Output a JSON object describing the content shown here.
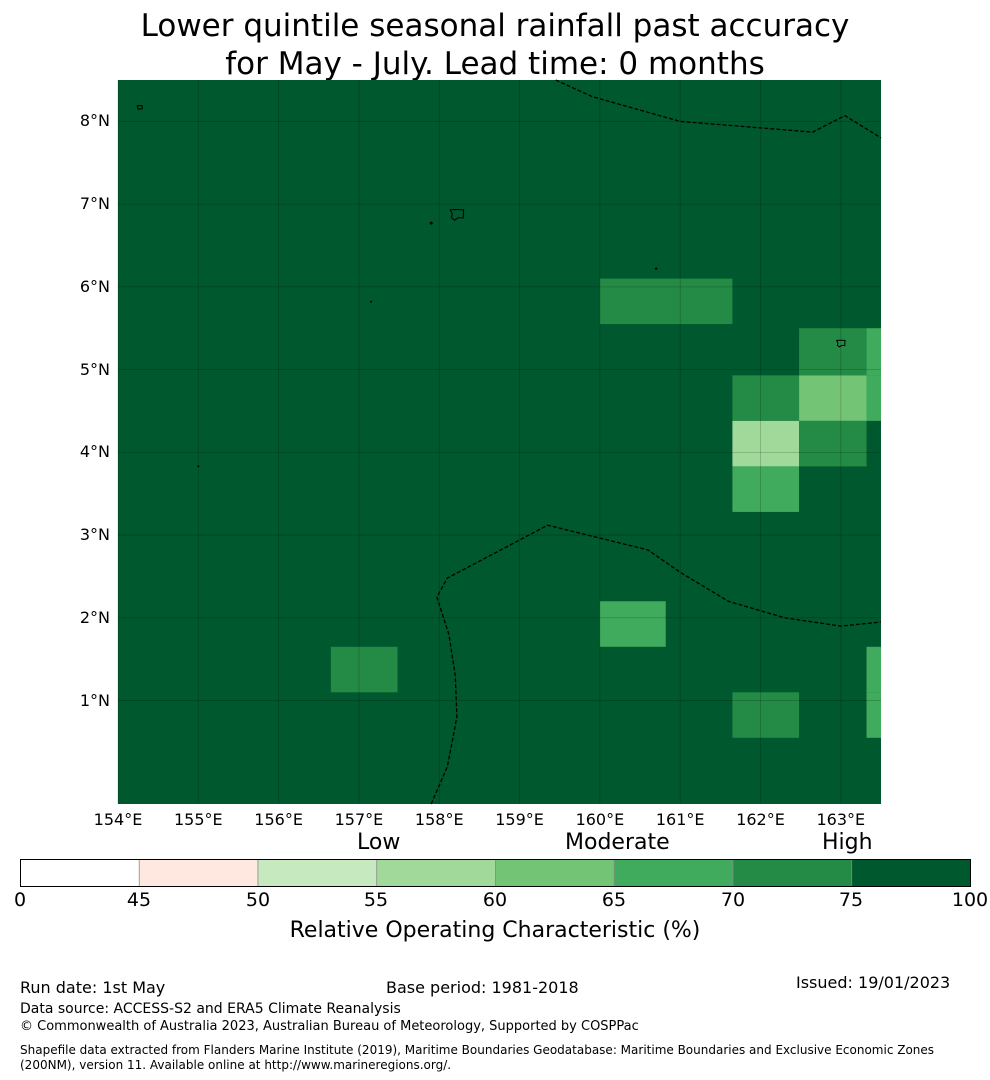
{
  "title": {
    "line1": "Lower quintile seasonal rainfall past accuracy",
    "line2": "for May - July. Lead time: 0 months"
  },
  "map": {
    "lon_range": [
      154,
      163.5
    ],
    "lat_range": [
      -0.25,
      8.5
    ],
    "background_color": "#00582e",
    "lat_labels": [
      "8°N",
      "7°N",
      "6°N",
      "5°N",
      "4°N",
      "3°N",
      "2°N",
      "1°N"
    ],
    "lat_values": [
      8,
      7,
      6,
      5,
      4,
      3,
      2,
      1
    ],
    "lon_labels": [
      "154°E",
      "155°E",
      "156°E",
      "157°E",
      "158°E",
      "159°E",
      "160°E",
      "161°E",
      "162°E",
      "163°E"
    ],
    "lon_values": [
      154,
      155,
      156,
      157,
      158,
      159,
      160,
      161,
      162,
      163
    ],
    "cells": [
      {
        "lon": [
          160.0,
          161.65
        ],
        "lat": [
          5.55,
          6.1
        ],
        "color": "#238b45"
      },
      {
        "lon": [
          162.48,
          163.32
        ],
        "lat": [
          4.93,
          5.5
        ],
        "color": "#238b45"
      },
      {
        "lon": [
          163.32,
          163.5
        ],
        "lat": [
          4.93,
          5.5
        ],
        "color": "#41ab5d"
      },
      {
        "lon": [
          161.65,
          162.48
        ],
        "lat": [
          4.38,
          4.93
        ],
        "color": "#238b45"
      },
      {
        "lon": [
          162.48,
          163.32
        ],
        "lat": [
          4.38,
          4.93
        ],
        "color": "#74c476"
      },
      {
        "lon": [
          163.32,
          163.5
        ],
        "lat": [
          4.38,
          4.93
        ],
        "color": "#41ab5d"
      },
      {
        "lon": [
          161.65,
          162.48
        ],
        "lat": [
          3.83,
          4.38
        ],
        "color": "#a1d99b"
      },
      {
        "lon": [
          162.48,
          163.32
        ],
        "lat": [
          3.83,
          4.38
        ],
        "color": "#238b45"
      },
      {
        "lon": [
          161.65,
          162.48
        ],
        "lat": [
          3.28,
          3.83
        ],
        "color": "#41ab5d"
      },
      {
        "lon": [
          160.0,
          160.82
        ],
        "lat": [
          1.65,
          2.2
        ],
        "color": "#41ab5d"
      },
      {
        "lon": [
          156.65,
          157.48
        ],
        "lat": [
          1.1,
          1.65
        ],
        "color": "#238b45"
      },
      {
        "lon": [
          163.32,
          163.5
        ],
        "lat": [
          1.1,
          1.65
        ],
        "color": "#41ab5d"
      },
      {
        "lon": [
          161.65,
          162.48
        ],
        "lat": [
          0.55,
          1.1
        ],
        "color": "#238b45"
      },
      {
        "lon": [
          163.32,
          163.5
        ],
        "lat": [
          0.55,
          1.1
        ],
        "color": "#41ab5d"
      }
    ],
    "eez_boundaries": [
      [
        [
          159.45,
          8.5
        ],
        [
          159.9,
          8.3
        ],
        [
          161.0,
          8.0
        ],
        [
          162.65,
          7.87
        ],
        [
          163.05,
          8.07
        ],
        [
          163.5,
          7.8
        ]
      ],
      [
        [
          157.9,
          -0.25
        ],
        [
          158.1,
          0.2
        ],
        [
          158.22,
          0.8
        ],
        [
          158.2,
          1.3
        ],
        [
          158.12,
          1.8
        ],
        [
          157.97,
          2.25
        ],
        [
          158.1,
          2.48
        ],
        [
          159.35,
          3.12
        ],
        [
          160.6,
          2.82
        ],
        [
          161.0,
          2.55
        ],
        [
          161.6,
          2.2
        ],
        [
          162.3,
          2.0
        ],
        [
          163.0,
          1.9
        ],
        [
          163.5,
          1.95
        ]
      ]
    ],
    "islands": [
      {
        "lon": 158.22,
        "lat": 6.88,
        "size": 8
      },
      {
        "lon": 163.0,
        "lat": 5.32,
        "size": 5
      },
      {
        "lon": 154.27,
        "lat": 8.17,
        "size": 3
      },
      {
        "lon": 157.9,
        "lat": 6.77,
        "size": 1.5
      },
      {
        "lon": 160.7,
        "lat": 6.22,
        "size": 1.2
      },
      {
        "lon": 157.15,
        "lat": 5.82,
        "size": 1
      },
      {
        "lon": 155.0,
        "lat": 3.83,
        "size": 1
      }
    ]
  },
  "categories": {
    "low": "Low",
    "moderate": "Moderate",
    "high": "High"
  },
  "colorbar": {
    "label": "Relative Operating Characteristic (%)",
    "ticks": [
      "0",
      "45",
      "50",
      "55",
      "60",
      "65",
      "70",
      "75",
      "100"
    ],
    "colors": [
      "#ffffff",
      "#fee8df",
      "#c7e9c0",
      "#a1d99b",
      "#74c476",
      "#41ab5d",
      "#238b45",
      "#00582e"
    ]
  },
  "footer": {
    "run_date": "Run date: 1st May",
    "base_period": "Base period: 1981-2018",
    "issued": "Issued: 19/01/2023",
    "data_source": "Data source: ACCESS-S2 and ERA5 Climate Reanalysis",
    "copyright": "© Commonwealth of Australia 2023, Australian Bureau of Meteorology, Supported by COSPPac",
    "shapefile_line1": "Shapefile data extracted from Flanders Marine Institute (2019), Maritime Boundaries Geodatabase: Maritime Boundaries and Exclusive Economic Zones",
    "shapefile_line2": "(200NM), version 11. Available online at http://www.marineregions.org/."
  }
}
